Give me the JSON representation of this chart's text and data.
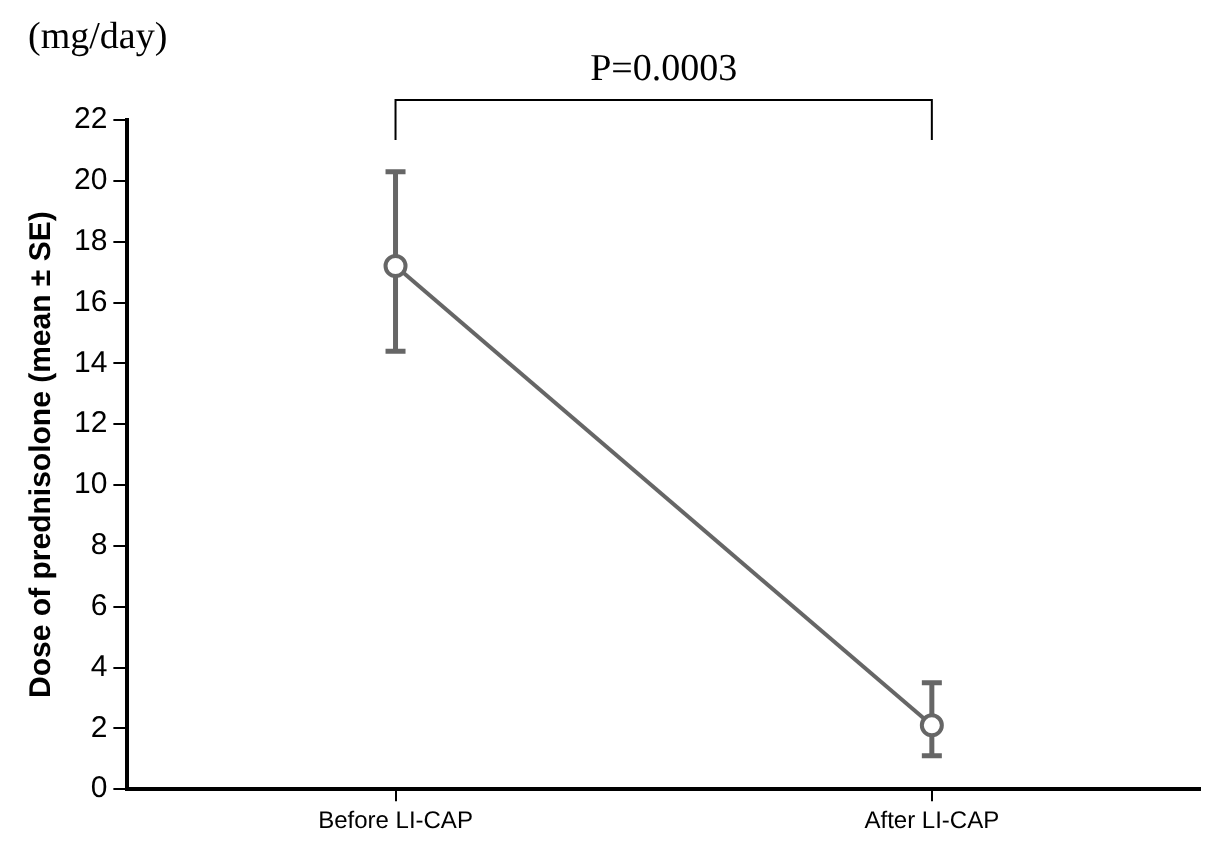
{
  "chart_data": {
    "type": "line",
    "ylabel": "Dose of prednisolone (mean ± SE)",
    "categories": [
      "Before LI-CAP",
      "After LI-CAP"
    ],
    "series": [
      {
        "color": "#666666",
        "values": [
          17.2,
          2.1
        ],
        "errors": [
          [
            14.4,
            20.3
          ],
          [
            1.1,
            3.5
          ]
        ]
      }
    ],
    "ylim": [
      0,
      22
    ],
    "yticks": [
      0,
      2,
      4,
      6,
      8,
      10,
      12,
      14,
      16,
      18,
      20,
      22
    ],
    "marker": "circle",
    "grid": false,
    "legend": false,
    "annotations": [
      "(mg/day)",
      "P=0.0003"
    ]
  }
}
